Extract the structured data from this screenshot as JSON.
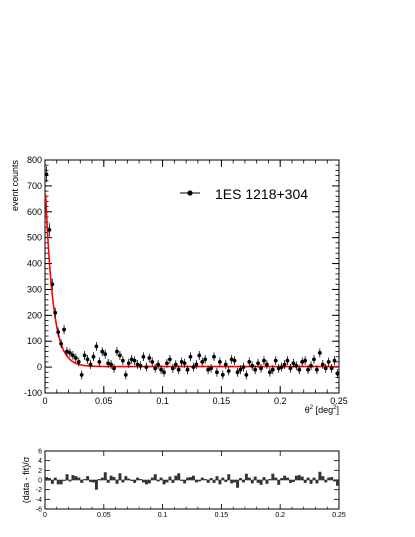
{
  "chart_data": [
    {
      "type": "scatter",
      "title": "",
      "xlabel": "θ² [deg²]",
      "ylabel": "event counts",
      "xlim": [
        0,
        0.25
      ],
      "ylim": [
        -100,
        800
      ],
      "x_ticks": [
        "0",
        "0.05",
        "0.1",
        "0.15",
        "0.2",
        "0.25"
      ],
      "y_ticks": [
        "-100",
        "0",
        "100",
        "200",
        "300",
        "400",
        "500",
        "600",
        "700",
        "800"
      ],
      "legend": {
        "label": "1ES 1218+304",
        "placement": "top-right"
      },
      "fit": {
        "type": "line",
        "color": "#ff0000",
        "amplitude": 720,
        "decay": 0.0065,
        "offset": 2
      },
      "series": [
        {
          "name": "1ES 1218+304",
          "color": "#000000",
          "x": [
            0.0012,
            0.0037,
            0.0062,
            0.0087,
            0.0112,
            0.0137,
            0.0162,
            0.0187,
            0.0212,
            0.0237,
            0.0262,
            0.0287,
            0.0312,
            0.0337,
            0.0362,
            0.0387,
            0.0412,
            0.0437,
            0.0462,
            0.0487,
            0.0512,
            0.0537,
            0.0562,
            0.0587,
            0.0612,
            0.0637,
            0.0662,
            0.0687,
            0.0712,
            0.0737,
            0.0762,
            0.0787,
            0.0812,
            0.0837,
            0.0862,
            0.0887,
            0.0912,
            0.0937,
            0.0962,
            0.0987,
            0.1012,
            0.1037,
            0.1062,
            0.1087,
            0.1112,
            0.1137,
            0.1162,
            0.1187,
            0.1212,
            0.1237,
            0.1262,
            0.1287,
            0.1312,
            0.1337,
            0.1362,
            0.1387,
            0.1412,
            0.1437,
            0.1462,
            0.1487,
            0.1512,
            0.1537,
            0.1562,
            0.1587,
            0.1612,
            0.1637,
            0.1662,
            0.1687,
            0.1712,
            0.1737,
            0.1762,
            0.1787,
            0.1812,
            0.1837,
            0.1862,
            0.1887,
            0.1912,
            0.1937,
            0.1962,
            0.1987,
            0.2012,
            0.2037,
            0.2062,
            0.2087,
            0.2112,
            0.2137,
            0.2162,
            0.2187,
            0.2212,
            0.2237,
            0.2262,
            0.2287,
            0.2312,
            0.2337,
            0.2362,
            0.2387,
            0.2412,
            0.2437,
            0.2462,
            0.2487
          ],
          "y": [
            745,
            530,
            320,
            210,
            135,
            90,
            145,
            60,
            55,
            45,
            35,
            20,
            -30,
            45,
            30,
            10,
            40,
            80,
            20,
            60,
            50,
            15,
            10,
            -5,
            60,
            45,
            25,
            -30,
            15,
            30,
            25,
            10,
            5,
            40,
            0,
            35,
            20,
            -5,
            10,
            -10,
            -20,
            15,
            30,
            -5,
            10,
            -10,
            20,
            15,
            -10,
            40,
            0,
            10,
            45,
            20,
            30,
            -10,
            -5,
            40,
            -20,
            20,
            -30,
            10,
            -15,
            30,
            25,
            -20,
            -10,
            0,
            -30,
            20,
            5,
            -10,
            15,
            -5,
            25,
            10,
            -20,
            -10,
            25,
            -5,
            0,
            10,
            25,
            -5,
            15,
            5,
            -10,
            20,
            25,
            -10,
            5,
            30,
            -10,
            55,
            10,
            -5,
            20,
            -5,
            25,
            -25
          ],
          "yerr": [
            30,
            26,
            22,
            20,
            18,
            17,
            18,
            17,
            17,
            17,
            17,
            17,
            17,
            17,
            17,
            17,
            17,
            17,
            17,
            17,
            17,
            17,
            17,
            17,
            17,
            17,
            17,
            17,
            17,
            17,
            17,
            17,
            17,
            17,
            17,
            17,
            17,
            17,
            17,
            17,
            17,
            17,
            17,
            17,
            17,
            17,
            17,
            17,
            17,
            17,
            17,
            17,
            17,
            17,
            17,
            17,
            17,
            17,
            17,
            17,
            17,
            17,
            17,
            17,
            17,
            17,
            17,
            17,
            17,
            17,
            17,
            17,
            17,
            17,
            17,
            17,
            17,
            17,
            17,
            17,
            17,
            17,
            17,
            17,
            17,
            17,
            17,
            17,
            17,
            17,
            17,
            17,
            17,
            17,
            17,
            17,
            17,
            17,
            17,
            17
          ]
        }
      ]
    },
    {
      "type": "bar",
      "title": "",
      "xlabel": "",
      "ylabel": "(data - fit)/σ",
      "xlim": [
        0,
        0.25
      ],
      "ylim": [
        -6,
        6
      ],
      "x_ticks": [
        "0",
        "0.05",
        "0.1",
        "0.15",
        "0.2",
        "0.25"
      ],
      "y_ticks": [
        "-6",
        "-4",
        "-2",
        "0",
        "2",
        "4",
        "6"
      ],
      "series": [
        {
          "color": "#333333",
          "values": [
            0.6,
            0.4,
            -0.8,
            0.5,
            -0.9,
            -0.9,
            -0.2,
            1.2,
            -0.3,
            1.0,
            0.8,
            0.5,
            -0.6,
            0.2,
            0.8,
            -0.4,
            -0.5,
            -2.0,
            0.2,
            0.5,
            1.6,
            -0.6,
            0.9,
            0.6,
            -0.8,
            1.4,
            -0.5,
            0.8,
            0.3,
            -0.2,
            -0.6,
            0.5,
            0.2,
            -0.5,
            -0.9,
            -0.7,
            0.5,
            1.2,
            -0.3,
            0.5,
            -0.9,
            -0.5,
            0.7,
            -0.6,
            0.9,
            1.4,
            -0.2,
            -0.7,
            0.5,
            0.6,
            0.9,
            -0.5,
            -0.3,
            0.5,
            0.2,
            -0.6,
            0.4,
            -0.6,
            0.8,
            -0.9,
            0.5,
            -0.4,
            1.2,
            -0.7,
            -0.5,
            -1.6,
            0.4,
            -0.5,
            1.3,
            0.5,
            -0.7,
            0.7,
            -0.6,
            -1.0,
            0.6,
            -0.8,
            0.2,
            1.3,
            0.5,
            -1.0,
            0.4,
            0.9,
            0.5,
            -0.6,
            -0.4,
            0.9,
            1.0,
            0.7,
            -0.6,
            0.5,
            -0.8,
            0.5,
            -0.7,
            1.7,
            0.8,
            -0.5,
            0.5,
            0.6,
            -0.3,
            -1.2
          ]
        }
      ]
    }
  ]
}
